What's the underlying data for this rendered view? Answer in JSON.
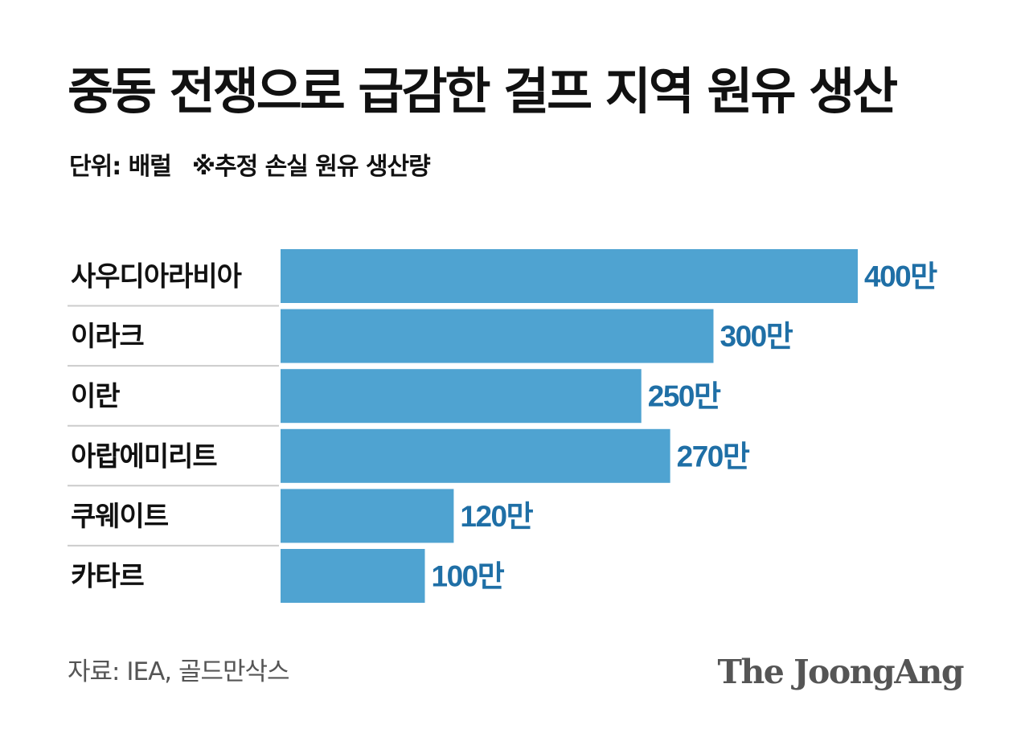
{
  "colors": {
    "bar": "#4fa3d1",
    "value_label": "#1f6fa6",
    "category_label": "#111111",
    "separator": "#cccccc",
    "footer_text": "#555555"
  },
  "chart_data": {
    "type": "bar",
    "orientation": "horizontal",
    "title": "중동 전쟁으로 급감한 걸프 지역 원유 생산",
    "unit_label": "단위: 배럴",
    "note": "※추정 손실 원유 생산량",
    "categories": [
      "사우디아라비아",
      "이라크",
      "이란",
      "아랍에미리트",
      "쿠웨이트",
      "카타르"
    ],
    "values": [
      4000000,
      3000000,
      2500000,
      2700000,
      1200000,
      1000000
    ],
    "value_labels": [
      "400만",
      "300만",
      "250만",
      "270만",
      "120만",
      "100만"
    ],
    "xlim": [
      0,
      4000000
    ],
    "grid": false,
    "legend": "none",
    "source": "자료:  IEA, 골드만삭스"
  },
  "branding": {
    "logo_text": "The JoongAng"
  }
}
